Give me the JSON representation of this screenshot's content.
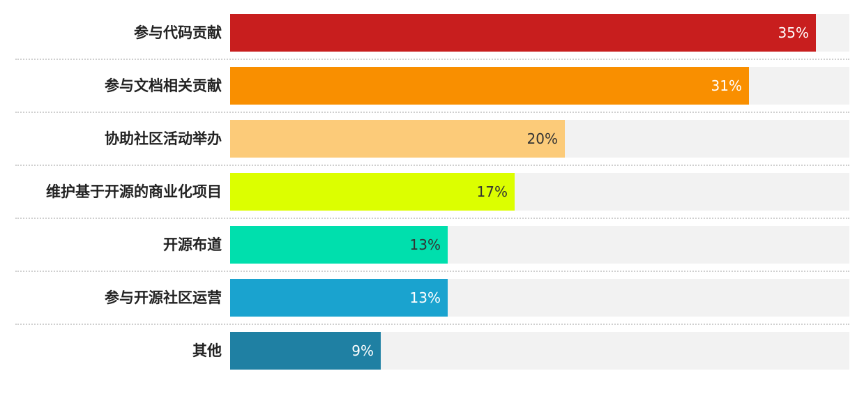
{
  "chart_data": {
    "type": "bar",
    "orientation": "horizontal",
    "categories": [
      "参与代码贡献",
      "参与文档相关贡献",
      "协助社区活动举办",
      "维护基于开源的商业化项目",
      "开源布道",
      "参与开源社区运营",
      "其他"
    ],
    "values": [
      35,
      31,
      20,
      17,
      13,
      13,
      9
    ],
    "value_labels": [
      "35%",
      "31%",
      "20%",
      "17%",
      "13%",
      "13%",
      "9%"
    ],
    "xlim": [
      0,
      37
    ],
    "unit": "%",
    "bar_colors": [
      "#c81e1e",
      "#f98f00",
      "#fccb79",
      "#dcff00",
      "#00dfad",
      "#1aa3cf",
      "#1f80a3"
    ],
    "label_colors": [
      "#ffffff",
      "#ffffff",
      "#333333",
      "#333333",
      "#333333",
      "#ffffff",
      "#ffffff"
    ],
    "track_color": "#f2f2f2",
    "grid": false,
    "legend": "none"
  }
}
